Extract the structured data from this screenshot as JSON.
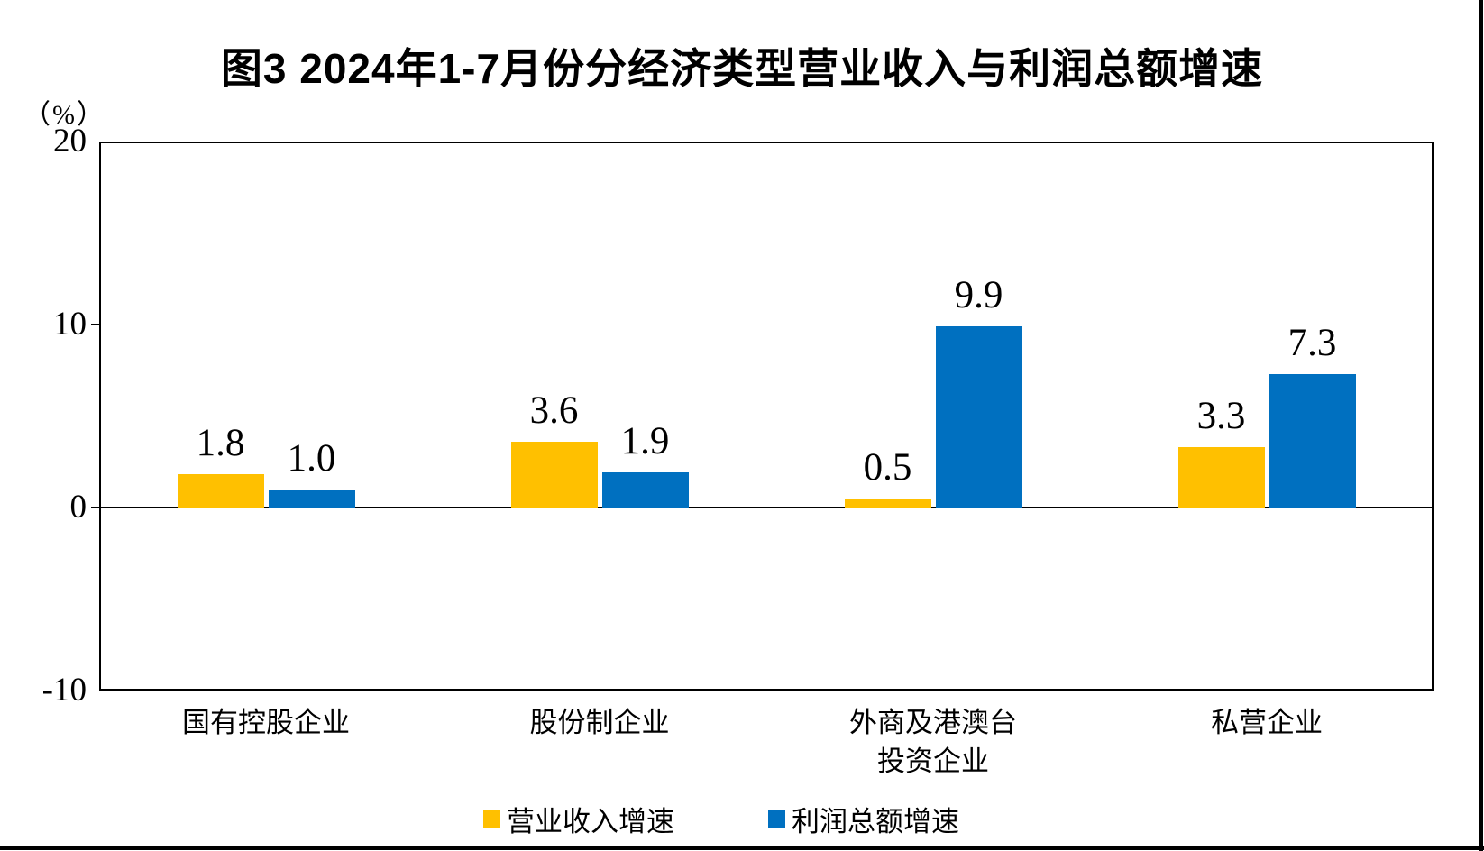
{
  "page": {
    "background": "#FFFFFF",
    "border_color": "#000000"
  },
  "chart_data": {
    "type": "bar",
    "title": "图3  2024年1-7月份分经济类型营业收入与利润总额增速",
    "unit_label": "（%）",
    "categories": [
      "国有控股企业",
      "股份制企业",
      "外商及港澳台\n投资企业",
      "私营企业"
    ],
    "series": [
      {
        "name": "营业收入增速",
        "color": "#FFC000",
        "values": [
          1.8,
          3.6,
          0.5,
          3.3
        ]
      },
      {
        "name": "利润总额增速",
        "color": "#0070C0",
        "values": [
          1.0,
          1.9,
          9.9,
          7.3
        ]
      }
    ],
    "value_labels": [
      "1.8",
      "1.0",
      "3.6",
      "1.9",
      "0.5",
      "9.9",
      "3.3",
      "7.3"
    ],
    "ytick_labels": [
      "20",
      "10",
      "0",
      "-10"
    ],
    "yticks": [
      20,
      10,
      0,
      -10
    ],
    "ylim": [
      -10,
      20
    ],
    "grid": false,
    "legend_position": "bottom",
    "axis_color": "#000000",
    "text_color": "#000000"
  }
}
